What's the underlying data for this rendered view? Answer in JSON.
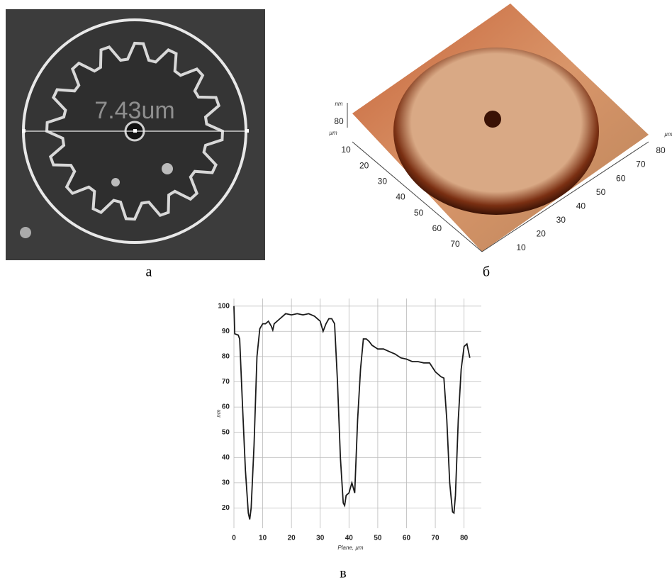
{
  "panels": [
    {
      "label": "а",
      "annotation": "7.43um"
    },
    {
      "label": "б",
      "z_unit": "nm",
      "z_ticks": [
        80
      ],
      "y_unit": "µm",
      "y_ticks": [
        10,
        20,
        30,
        40,
        50,
        60,
        70
      ],
      "x_unit": "µm",
      "x_ticks": [
        10,
        20,
        30,
        40,
        50,
        60,
        70,
        80
      ]
    },
    {
      "label": "в"
    }
  ],
  "chart_data": {
    "type": "line",
    "xlabel": "Plane, µm",
    "ylabel": "nm",
    "x": [
      0,
      0.3,
      1.5,
      2,
      3,
      4,
      5,
      5.5,
      6,
      7,
      8,
      9,
      10,
      11,
      12,
      13,
      13.5,
      14,
      15,
      16,
      18,
      20,
      22,
      24,
      26,
      28,
      30,
      31,
      32,
      33,
      34,
      35,
      36,
      37,
      38,
      38.5,
      39,
      40,
      41,
      42,
      43,
      44,
      45,
      46,
      47,
      48,
      50,
      52,
      54,
      56,
      58,
      60,
      62,
      64,
      66,
      68,
      70,
      72,
      73,
      74,
      75,
      76,
      76.5,
      77,
      78,
      79,
      80,
      81,
      82
    ],
    "series": [
      {
        "color": "#1a1a1a",
        "values": [
          100,
          89,
          88.5,
          87,
          60,
          35,
          18,
          15.5,
          20,
          45,
          80,
          91,
          93,
          93,
          94,
          92,
          90.5,
          93,
          94,
          95,
          97,
          96.5,
          97,
          96.5,
          97,
          96,
          94,
          90,
          93,
          95,
          95,
          93,
          70,
          40,
          22,
          21,
          25,
          26,
          30,
          26,
          55,
          75,
          87,
          87,
          86,
          84.5,
          83,
          83,
          82,
          81,
          79.5,
          79,
          78,
          78,
          77.5,
          77.5,
          74,
          72,
          71.5,
          55,
          30,
          18.5,
          18,
          25,
          55,
          75,
          84,
          85,
          79.5
        ]
      }
    ],
    "xlim": [
      0,
      86
    ],
    "ylim": [
      12,
      103
    ],
    "xticks": [
      0,
      10,
      20,
      30,
      40,
      50,
      60,
      70,
      80
    ],
    "yticks": [
      20,
      30,
      40,
      50,
      60,
      70,
      80,
      90,
      100
    ],
    "grid": true
  }
}
